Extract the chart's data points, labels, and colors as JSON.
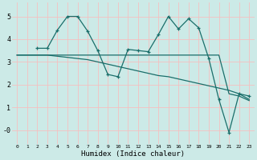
{
  "xlabel": "Humidex (Indice chaleur)",
  "background_color": "#cceae7",
  "grid_color": "#f5c0c0",
  "line_color": "#1a6e6a",
  "xlim": [
    -0.5,
    23.5
  ],
  "ylim": [
    -0.6,
    5.6
  ],
  "yticks": [
    0,
    1,
    2,
    3,
    4,
    5
  ],
  "ytick_labels": [
    "-0",
    "1",
    "2",
    "3",
    "4",
    "5"
  ],
  "xticks": [
    0,
    1,
    2,
    3,
    4,
    5,
    6,
    7,
    8,
    9,
    10,
    11,
    12,
    13,
    14,
    15,
    16,
    17,
    18,
    19,
    20,
    21,
    22,
    23
  ],
  "lines": [
    {
      "x": [
        0,
        1,
        2,
        3,
        4,
        5,
        6,
        7,
        8,
        9,
        10,
        11,
        12,
        13,
        14,
        15,
        16,
        17,
        18,
        19,
        20,
        21,
        22,
        23
      ],
      "y": [
        3.3,
        3.3,
        3.3,
        3.3,
        3.3,
        3.3,
        3.3,
        3.3,
        3.3,
        3.3,
        3.3,
        3.3,
        3.3,
        3.3,
        3.3,
        3.3,
        3.3,
        3.3,
        3.3,
        3.3,
        3.3,
        1.6,
        1.5,
        1.3
      ],
      "marker": false
    },
    {
      "x": [
        0,
        1,
        2,
        3,
        4,
        5,
        6,
        7,
        8,
        9,
        10,
        11,
        12,
        13,
        14,
        15,
        16,
        17,
        18,
        19,
        20,
        21,
        22,
        23
      ],
      "y": [
        3.3,
        3.3,
        3.3,
        3.3,
        3.25,
        3.2,
        3.15,
        3.1,
        3.0,
        2.9,
        2.8,
        2.7,
        2.6,
        2.5,
        2.4,
        2.35,
        2.25,
        2.15,
        2.05,
        1.95,
        1.85,
        1.75,
        1.6,
        1.35
      ],
      "marker": false
    },
    {
      "x": [
        2,
        3,
        4,
        5,
        6,
        7,
        8,
        9,
        10,
        11,
        12,
        13,
        14,
        15,
        16,
        17,
        18,
        19,
        20,
        21,
        22,
        23
      ],
      "y": [
        3.6,
        3.6,
        4.4,
        5.0,
        5.0,
        4.35,
        3.5,
        2.45,
        2.35,
        3.55,
        3.5,
        3.45,
        4.2,
        5.0,
        4.45,
        4.9,
        4.5,
        3.15,
        1.35,
        -0.1,
        1.6,
        1.5
      ],
      "marker": true
    }
  ]
}
